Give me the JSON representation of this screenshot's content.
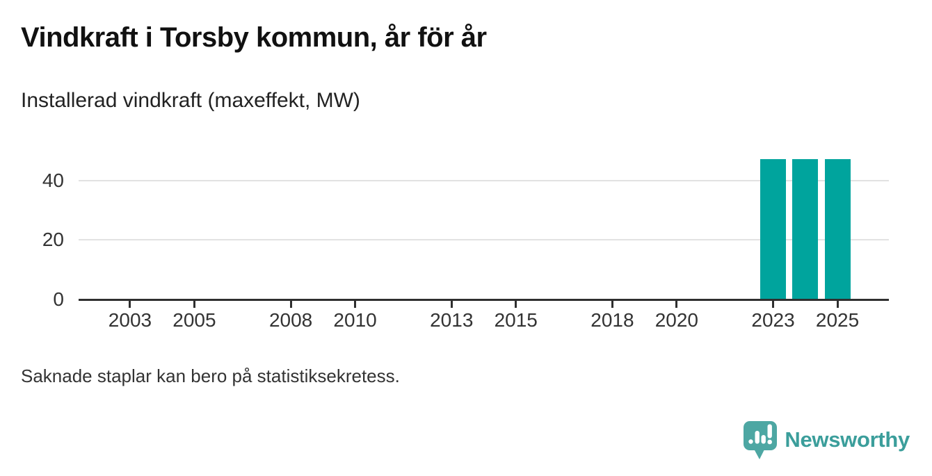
{
  "header": {
    "title": "Vindkraft i Torsby kommun, år för år",
    "subtitle": "Installerad vindkraft (maxeffekt, MW)"
  },
  "footer": {
    "note": "Saknade staplar kan bero på statistiksekretess."
  },
  "branding": {
    "wordmark": "Newsworthy",
    "icon": "newsworthy-speech-bubble-bar-chart-icon",
    "icon_color": "#4da7a3",
    "wordmark_color": "#3b9e9b"
  },
  "colors": {
    "background": "#ffffff",
    "title": "#111111",
    "subtitle": "#222222",
    "axis": "#2f2f2f",
    "tick_label": "#333333",
    "gridline": "#e2e2e2",
    "bar": "#00a49d",
    "footer": "#333333"
  },
  "chart_data": {
    "type": "bar",
    "title": "Vindkraft i Torsby kommun, år för år",
    "subtitle": "Installerad vindkraft (maxeffekt, MW)",
    "xlabel": "",
    "ylabel": "",
    "unit": "MW",
    "categories": [
      2023,
      2024,
      2025
    ],
    "values": [
      47,
      47,
      47
    ],
    "bar_color": "#00a49d",
    "bar_width_years": 0.8,
    "x_axis": {
      "min": 2001.4,
      "max": 2026.6,
      "ticks": [
        2003,
        2005,
        2008,
        2010,
        2013,
        2015,
        2018,
        2020,
        2023,
        2025
      ]
    },
    "y_axis": {
      "min": 0,
      "max": 50,
      "ticks": [
        0,
        20,
        40
      ]
    },
    "grid": "horizontal",
    "legend": "none",
    "note": "Saknade staplar kan bero på statistiksekretess."
  }
}
